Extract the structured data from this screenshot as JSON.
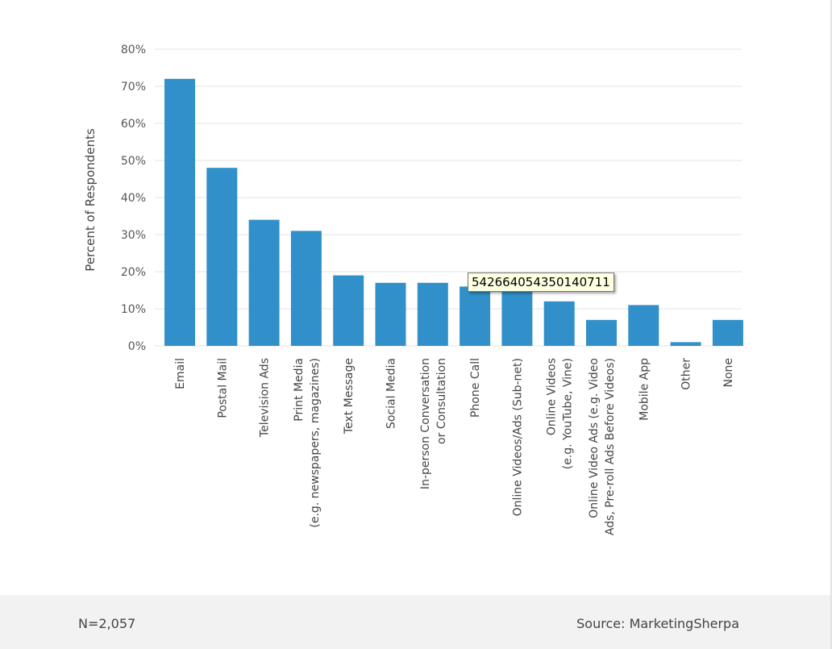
{
  "chart_data": {
    "type": "bar",
    "title": "",
    "xlabel": "",
    "ylabel": "Percent of Respondents",
    "ylim": [
      0,
      80
    ],
    "yticks": [
      "0%",
      "10%",
      "20%",
      "30%",
      "40%",
      "50%",
      "60%",
      "70%",
      "80%"
    ],
    "grid": true,
    "bar_color": "#3190c9",
    "categories": [
      [
        "Email"
      ],
      [
        "Postal Mail"
      ],
      [
        "Television Ads"
      ],
      [
        "Print Media",
        "(e.g. newspapers, magazines)"
      ],
      [
        "Text Message"
      ],
      [
        "Social Media"
      ],
      [
        "In-person Conversation",
        "or Consultation"
      ],
      [
        "Phone Call"
      ],
      [
        "Online Videos/Ads (Sub-net)"
      ],
      [
        "Online Videos",
        "(e.g. YouTube, Vine)"
      ],
      [
        "Online Video Ads (e.g. Video",
        "Ads, Pre-roll Ads Before Videos)"
      ],
      [
        "Mobile App"
      ],
      [
        "Other"
      ],
      [
        "None"
      ]
    ],
    "values": [
      72,
      48,
      34,
      31,
      19,
      17,
      17,
      16,
      15,
      12,
      7,
      11,
      1,
      7
    ]
  },
  "footer": {
    "n_label": "N=2,057",
    "source": "Source: MarketingSherpa"
  },
  "tooltip": {
    "text": "542664054350140711"
  }
}
